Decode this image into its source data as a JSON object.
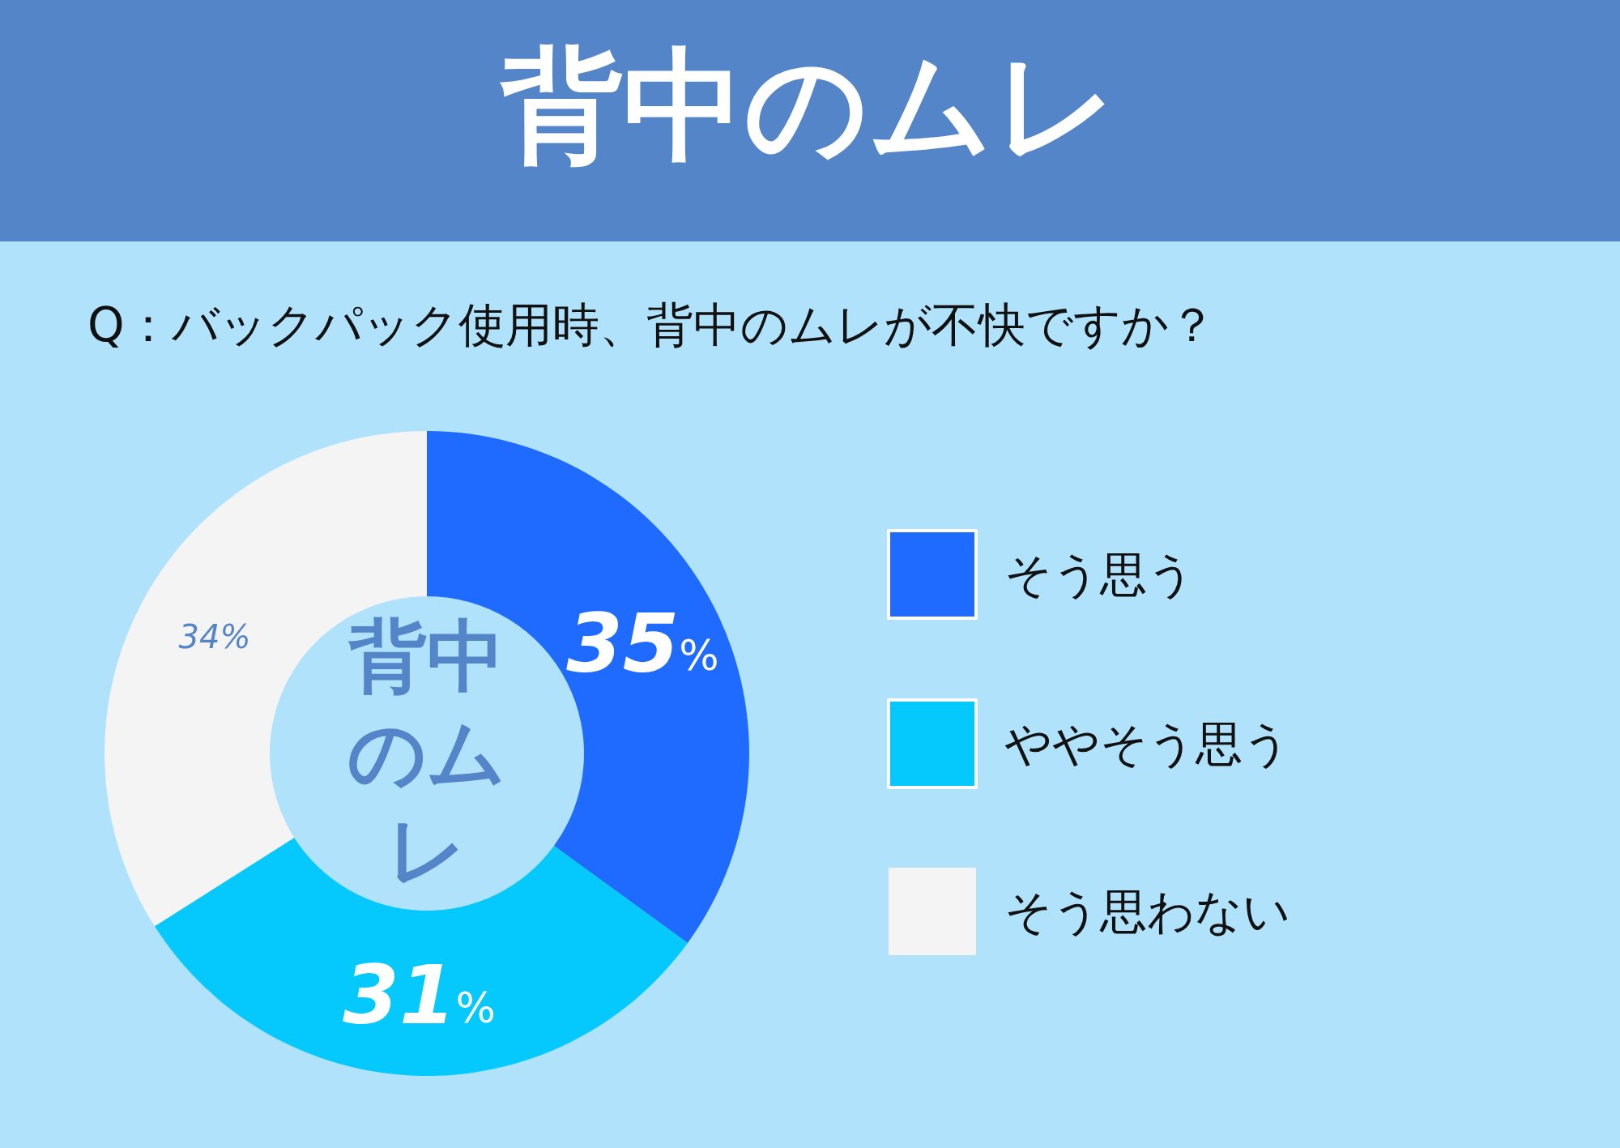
{
  "chart_data": {
    "type": "donut",
    "title": "背中のムレ",
    "subtitle": "Q：バックパック使用時、背中のムレが不快ですか？",
    "categories": [
      "そう思う",
      "ややそう思う",
      "そう思わない"
    ],
    "values": [
      35,
      31,
      34
    ],
    "colors": [
      "#1f6bff",
      "#05c8fc",
      "#f4f4f4"
    ],
    "value_labels": [
      "35%",
      "31%",
      "34%"
    ],
    "annotations": [
      "背中のムレ"
    ],
    "legend": "right"
  }
}
